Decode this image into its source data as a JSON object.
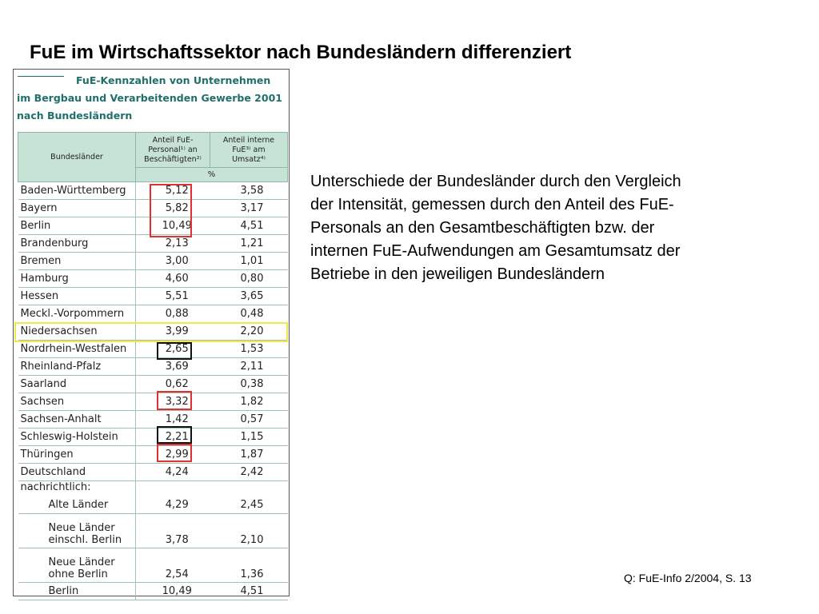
{
  "slide": {
    "title": "FuE im Wirtschaftssektor nach Bundesländern differenziert",
    "description_lines": [
      "Unterschiede der Bundesländer durch den Vergleich",
      "der Intensität, gemessen durch den Anteil des FuE-",
      "Personals an den Gesamtbeschäftigten bzw. der",
      "internen FuE-Aufwendungen am Gesamtumsatz der",
      "Betriebe in den jeweiligen Bundesländern"
    ],
    "source": "Q: FuE-Info 2/2004, S. 13"
  },
  "table": {
    "heading_lines": [
      "FuE-Kennzahlen von Unternehmen",
      "im Bergbau und Verarbeitenden Gewerbe 2001",
      "nach Bundesländern"
    ],
    "col_header_name": "Bundesländer",
    "col_header_personal": [
      "Anteil FuE-",
      "Personal¹⁾ an",
      "Beschäftigten²⁾"
    ],
    "col_header_umsatz": [
      "Anteil interne",
      "FuE³⁾ am",
      "Umsatz⁴⁾"
    ],
    "unit": "%",
    "rows": [
      {
        "name": "Baden-Württemberg",
        "personal": "5,12",
        "umsatz": "3,58"
      },
      {
        "name": "Bayern",
        "personal": "5,82",
        "umsatz": "3,17"
      },
      {
        "name": "Berlin",
        "personal": "10,49",
        "umsatz": "4,51"
      },
      {
        "name": "Brandenburg",
        "personal": "2,13",
        "umsatz": "1,21"
      },
      {
        "name": "Bremen",
        "personal": "3,00",
        "umsatz": "1,01"
      },
      {
        "name": "Hamburg",
        "personal": "4,60",
        "umsatz": "0,80"
      },
      {
        "name": "Hessen",
        "personal": "5,51",
        "umsatz": "3,65"
      },
      {
        "name": "Meckl.-Vorpommern",
        "personal": "0,88",
        "umsatz": "0,48"
      },
      {
        "name": "Niedersachsen",
        "personal": "3,99",
        "umsatz": "2,20"
      },
      {
        "name": "Nordrhein-Westfalen",
        "personal": "2,65",
        "umsatz": "1,53"
      },
      {
        "name": "Rheinland-Pfalz",
        "personal": "3,69",
        "umsatz": "2,11"
      },
      {
        "name": "Saarland",
        "personal": "0,62",
        "umsatz": "0,38"
      },
      {
        "name": "Sachsen",
        "personal": "3,32",
        "umsatz": "1,82"
      },
      {
        "name": "Sachsen-Anhalt",
        "personal": "1,42",
        "umsatz": "0,57"
      },
      {
        "name": "Schleswig-Holstein",
        "personal": "2,21",
        "umsatz": "1,15"
      },
      {
        "name": "Thüringen",
        "personal": "2,99",
        "umsatz": "1,87"
      },
      {
        "name": "Deutschland",
        "personal": "4,24",
        "umsatz": "2,42"
      }
    ],
    "note_label": "nachrichtlich:",
    "note_rows": [
      {
        "name_lines": [
          "Alte Länder"
        ],
        "personal": "4,29",
        "umsatz": "2,45"
      },
      {
        "name_lines": [
          "Neue Länder",
          "einschl. Berlin"
        ],
        "personal": "3,78",
        "umsatz": "2,10"
      },
      {
        "name_lines": [
          "Neue Länder",
          "ohne Berlin"
        ],
        "personal": "2,54",
        "umsatz": "1,36"
      },
      {
        "name_lines": [
          "Berlin"
        ],
        "personal": "10,49",
        "umsatz": "4,51"
      }
    ]
  },
  "highlight_colors": {
    "red": "#e03030",
    "black": "#111111",
    "yellow": "#f2e64a"
  }
}
